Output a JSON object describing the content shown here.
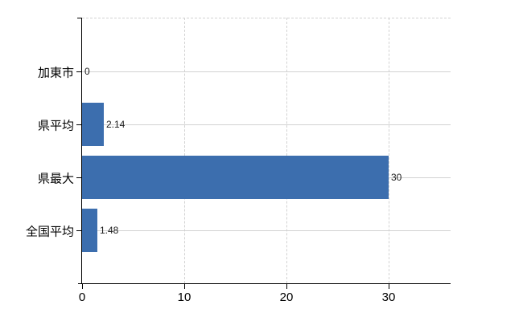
{
  "chart_data": {
    "type": "bar",
    "orientation": "horizontal",
    "categories": [
      "加東市",
      "県平均",
      "県最大",
      "全国平均"
    ],
    "values": [
      0,
      2.14,
      30,
      1.48
    ],
    "value_labels": [
      "0",
      "2.14",
      "30",
      "1.48"
    ],
    "xticks": [
      0,
      10,
      20,
      30
    ],
    "xlim": [
      0,
      36
    ],
    "grid": true,
    "legend": false,
    "title": "",
    "bar_color": "#3c6eae",
    "axis_color": "#000000",
    "gridline_color": "#d2d2d2",
    "category_label_color": "#000000",
    "tick_label_color": "#000000",
    "value_label_color": "#1c1c1c"
  }
}
